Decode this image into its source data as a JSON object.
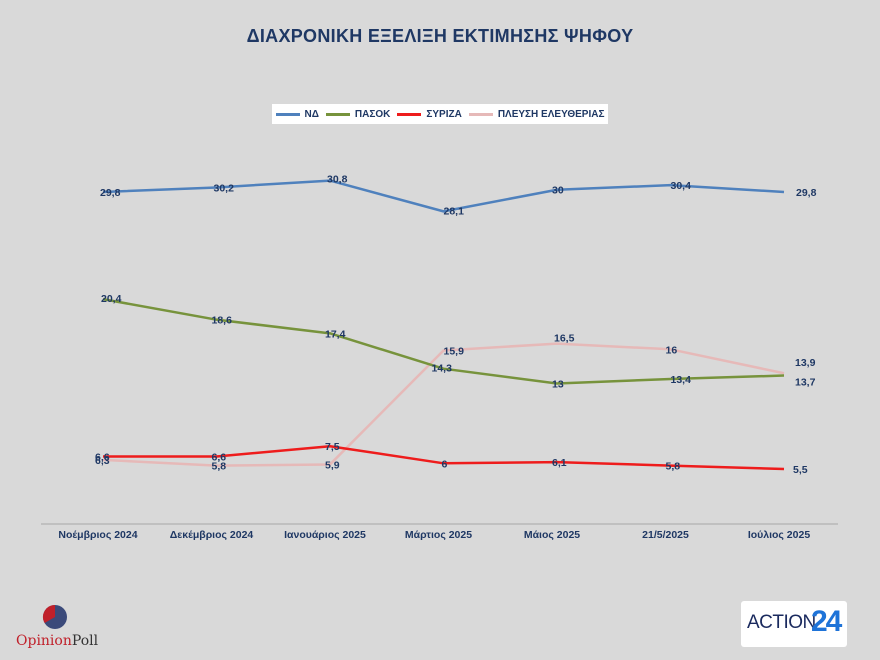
{
  "chart_data": {
    "type": "line",
    "title": "ΔΙΑΧΡΟΝΙΚΗ ΕΞΕΛΙΞΗ ΕΚΤΙΜΗΣΗΣ ΨΗΦΟΥ",
    "categories": [
      "Νοέμβριος 2024",
      "Δεκέμβριος 2024",
      "Ιανουάριος 2025",
      "Μάρτιος 2025",
      "Μάιος 2025",
      "21/5/2025",
      "Ιούλιος 2025"
    ],
    "series": [
      {
        "name": "ΝΔ",
        "color": "#4f81bd",
        "values": [
          29.8,
          30.2,
          30.8,
          28.1,
          30,
          30.4,
          29.8
        ],
        "labels": [
          "29,8",
          "30,2",
          "30,8",
          "28,1",
          "30",
          "30,4",
          "29,8"
        ]
      },
      {
        "name": "ΠΑΣΟΚ",
        "color": "#77933c",
        "values": [
          20.4,
          18.6,
          17.4,
          14.3,
          13,
          13.4,
          13.7
        ],
        "labels": [
          "20,4",
          "18,6",
          "17,4",
          "14,3",
          "13",
          "13,4",
          "13,7"
        ]
      },
      {
        "name": "ΣΥΡΙΖΑ",
        "color": "#ee1c1c",
        "values": [
          6.6,
          6.6,
          7.5,
          6,
          6.1,
          5.8,
          5.5
        ],
        "labels": [
          "6,6",
          "6,6",
          "7,5",
          "6",
          "6,1",
          "5,8",
          "5,5"
        ]
      },
      {
        "name": "ΠΛΕΥΣΗ ΕΛΕΥΘΕΡΙΑΣ",
        "color": "#e6b9b8",
        "values": [
          6.3,
          5.8,
          5.9,
          15.9,
          16.5,
          16,
          13.9
        ],
        "labels": [
          "6,3",
          "5,8",
          "5,9",
          "15,9",
          "16,5",
          "16",
          "13,9"
        ]
      }
    ],
    "legend_position": "top",
    "grid": false
  },
  "logos": {
    "opinion_poll": {
      "part1": "Opinion",
      "part2": "Poll"
    },
    "action24": {
      "part1": "ACTION",
      "part2": "24"
    }
  }
}
